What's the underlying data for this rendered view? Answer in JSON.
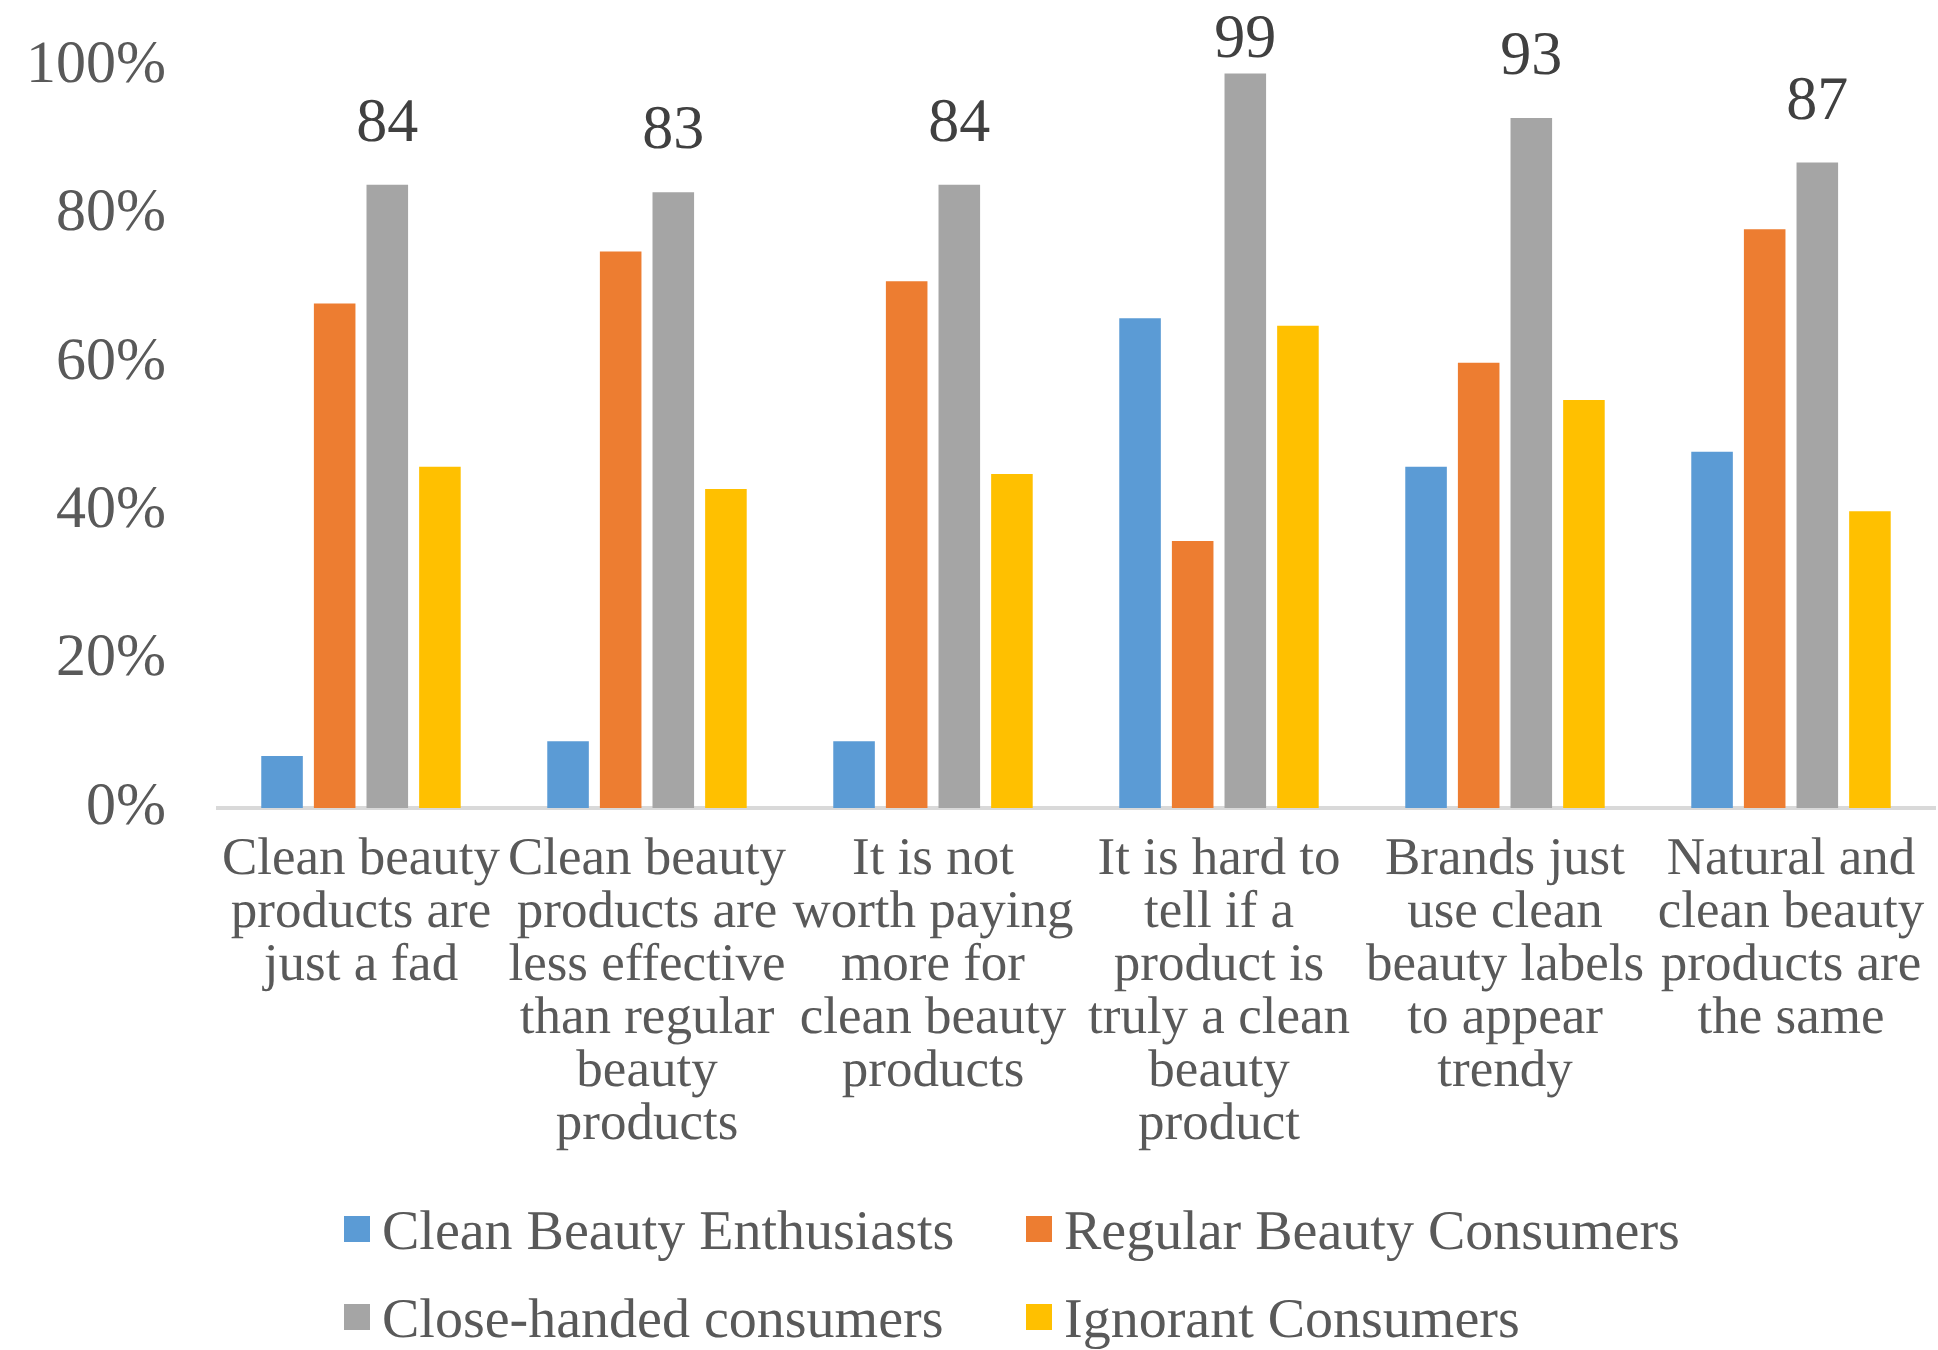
{
  "chart_data": {
    "type": "bar",
    "categories": [
      "Clean beauty products are just a fad",
      "Clean beauty products are less effective than regular beauty products",
      "It is not worth paying more for clean beauty products",
      "It is hard to tell if a product is truly a clean beauty product",
      "Brands just use clean beauty labels to appear trendy",
      "Natural and clean beauty products are the same"
    ],
    "series": [
      {
        "name": "Clean Beauty Enthusiasts",
        "color": "#5b9bd5",
        "values": [
          7,
          9,
          9,
          66,
          46,
          48
        ]
      },
      {
        "name": "Regular Beauty Consumers",
        "color": "#ed7d31",
        "values": [
          68,
          75,
          71,
          36,
          60,
          78
        ]
      },
      {
        "name": "Close-handed consumers",
        "color": "#a5a5a5",
        "values": [
          84,
          83,
          84,
          99,
          93,
          87
        ],
        "value_labels": [
          "84",
          "83",
          "84",
          "99",
          "93",
          "87"
        ]
      },
      {
        "name": "Ignorant Consumers",
        "color": "#ffc000",
        "values": [
          46,
          43,
          45,
          65,
          55,
          40
        ]
      }
    ],
    "ylim": [
      0,
      100
    ],
    "yticks": [
      {
        "value": 0,
        "label": "0%"
      },
      {
        "value": 20,
        "label": "20%"
      },
      {
        "value": 40,
        "label": "40%"
      },
      {
        "value": 60,
        "label": "60%"
      },
      {
        "value": 80,
        "label": "80%"
      },
      {
        "value": 100,
        "label": "100%"
      }
    ],
    "legend": "bottom"
  }
}
